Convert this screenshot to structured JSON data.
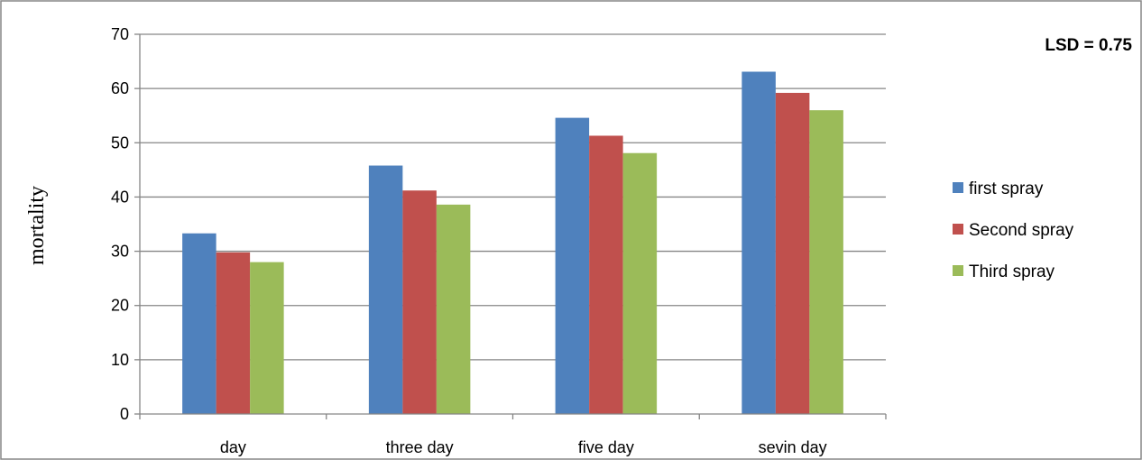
{
  "chart_data": {
    "type": "bar",
    "categories": [
      "day",
      "three day",
      "five day",
      "sevin day"
    ],
    "series": [
      {
        "name": "first spray",
        "color": "#4f81bd",
        "values": [
          33.3,
          45.8,
          54.6,
          63.1
        ]
      },
      {
        "name": "Second spray",
        "color": "#c0504d",
        "values": [
          29.8,
          41.2,
          51.3,
          59.2
        ]
      },
      {
        "name": "Third spray",
        "color": "#9bbb59",
        "values": [
          28.0,
          38.6,
          48.1,
          56.0
        ]
      }
    ],
    "ylabel": "mortality",
    "xlabel": "",
    "ylim": [
      0,
      70
    ],
    "yticks": [
      0,
      10,
      20,
      30,
      40,
      50,
      60,
      70
    ],
    "grid": true,
    "legend_position": "right",
    "annotation": "LSD = 0.75"
  }
}
